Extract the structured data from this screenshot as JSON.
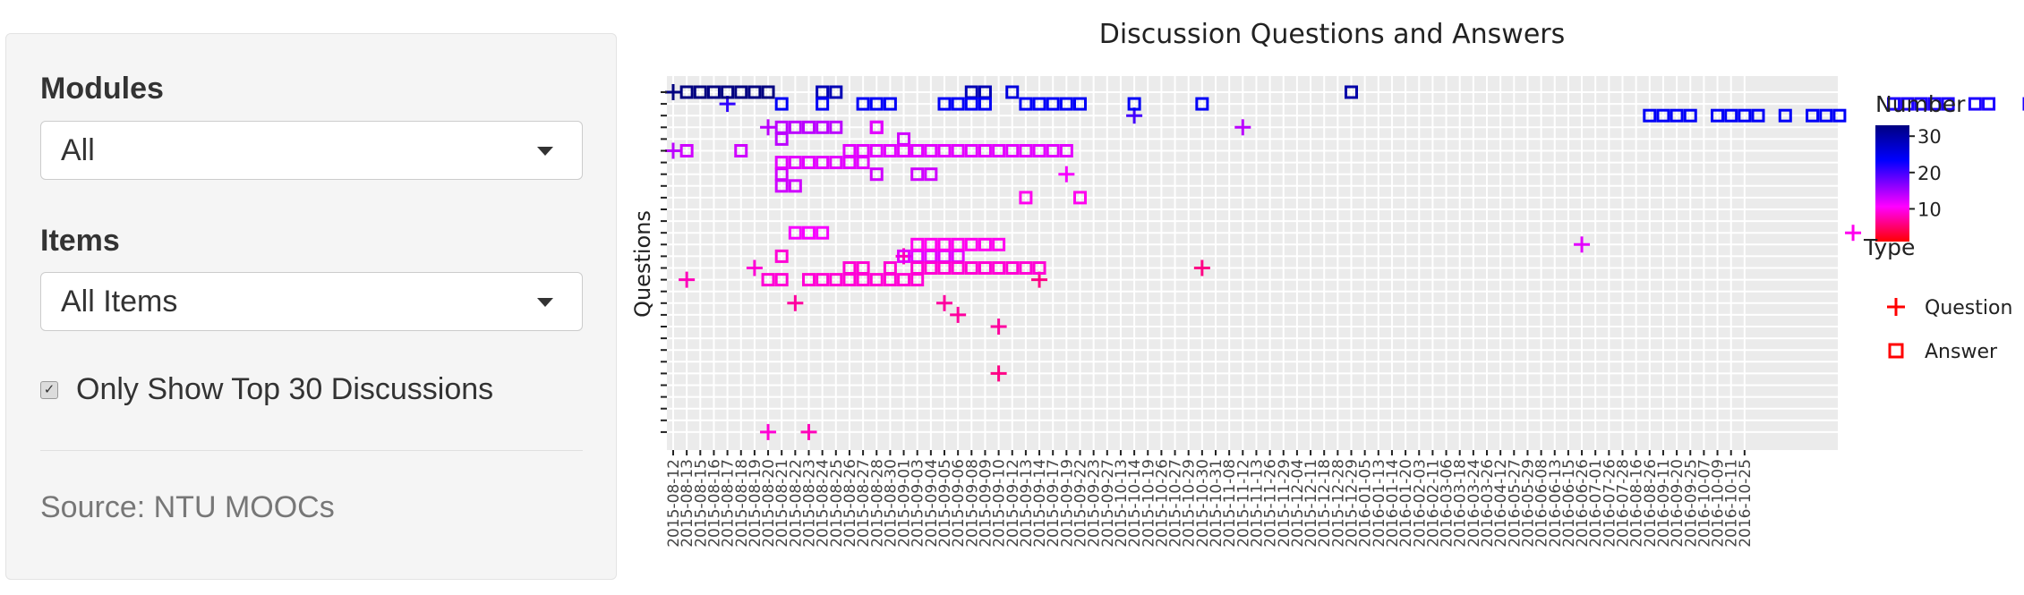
{
  "sidebar": {
    "modules_label": "Modules",
    "modules_value": "All",
    "items_label": "Items",
    "items_value": "All Items",
    "checkbox_checked": true,
    "checkbox_label": "Only Show Top 30 Discussions",
    "source_text": "Source: NTU MOOCs"
  },
  "chart_data": {
    "type": "scatter",
    "title": "Discussion Questions and Answers",
    "ylabel": "Questions",
    "xlabel": "",
    "grid": true,
    "x": [
      "2015-08-12",
      "2015-08-13",
      "2015-08-15",
      "2015-08-16",
      "2015-08-17",
      "2015-08-18",
      "2015-08-19",
      "2015-08-20",
      "2015-08-21",
      "2015-08-22",
      "2015-08-23",
      "2015-08-24",
      "2015-08-25",
      "2015-08-26",
      "2015-08-27",
      "2015-08-28",
      "2015-08-30",
      "2015-09-01",
      "2015-09-03",
      "2015-09-04",
      "2015-09-05",
      "2015-09-06",
      "2015-09-08",
      "2015-09-09",
      "2015-09-10",
      "2015-09-12",
      "2015-09-13",
      "2015-09-14",
      "2015-09-17",
      "2015-09-19",
      "2015-09-22",
      "2015-09-23",
      "2015-09-27",
      "2015-10-13",
      "2015-10-14",
      "2015-10-19",
      "2015-10-26",
      "2015-10-27",
      "2015-10-29",
      "2015-10-30",
      "2015-10-31",
      "2015-11-08",
      "2015-11-12",
      "2015-11-13",
      "2015-11-26",
      "2015-11-29",
      "2015-12-04",
      "2015-12-11",
      "2015-12-18",
      "2015-12-28",
      "2015-12-29",
      "2016-01-05",
      "2016-01-13",
      "2016-01-14",
      "2016-01-20",
      "2016-02-03",
      "2016-02-11",
      "2016-03-06",
      "2016-03-18",
      "2016-03-24",
      "2016-03-26",
      "2016-04-12",
      "2016-05-27",
      "2016-05-29",
      "2016-06-08",
      "2016-06-13",
      "2016-06-15",
      "2016-06-26",
      "2016-07-01",
      "2016-07-26",
      "2016-07-28",
      "2016-08-16",
      "2016-08-26",
      "2016-09-11",
      "2016-09-20",
      "2016-09-25",
      "2016-10-07",
      "2016-10-09",
      "2016-10-11",
      "2016-10-25"
    ],
    "n_questions": 30,
    "legend": {
      "title": "Type",
      "placement": "right",
      "entries": [
        {
          "name": "Question",
          "marker": "cross"
        },
        {
          "name": "Answer",
          "marker": "square"
        }
      ]
    },
    "colorbar": {
      "title": "Number",
      "ticks": [
        10,
        20,
        30
      ],
      "range": [
        1,
        33
      ],
      "colors": [
        "#ff0000",
        "#ff00ff",
        "#0000ff",
        "#000080"
      ]
    },
    "series": [
      {
        "name": "Question",
        "points": [
          [
            0,
            1,
            33
          ],
          [
            4,
            2,
            21
          ],
          [
            0,
            6,
            14
          ],
          [
            1,
            17,
            8
          ],
          [
            6,
            16,
            9
          ],
          [
            7,
            4,
            14
          ],
          [
            7,
            30,
            9
          ],
          [
            10,
            30,
            8
          ],
          [
            9,
            19,
            7
          ],
          [
            17,
            15,
            8
          ],
          [
            21,
            20,
            7
          ],
          [
            20,
            19,
            7
          ],
          [
            24,
            25,
            6
          ],
          [
            27,
            17,
            6
          ],
          [
            24,
            21,
            7
          ],
          [
            29,
            8,
            11
          ],
          [
            39,
            16,
            6
          ],
          [
            34,
            3,
            20
          ],
          [
            42,
            4,
            14
          ],
          [
            67,
            14,
            12
          ],
          [
            87,
            13,
            10
          ]
        ]
      },
      {
        "name": "Answer",
        "points": [
          [
            1,
            1,
            33
          ],
          [
            2,
            1,
            33
          ],
          [
            3,
            1,
            33
          ],
          [
            4,
            1,
            33
          ],
          [
            5,
            1,
            33
          ],
          [
            6,
            1,
            33
          ],
          [
            7,
            1,
            33
          ],
          [
            8,
            2,
            24
          ],
          [
            11,
            1,
            29
          ],
          [
            12,
            1,
            29
          ],
          [
            11,
            2,
            24
          ],
          [
            14,
            2,
            24
          ],
          [
            15,
            2,
            24
          ],
          [
            16,
            2,
            24
          ],
          [
            20,
            2,
            24
          ],
          [
            21,
            2,
            24
          ],
          [
            22,
            1,
            29
          ],
          [
            23,
            1,
            29
          ],
          [
            22,
            2,
            24
          ],
          [
            23,
            2,
            24
          ],
          [
            25,
            1,
            26
          ],
          [
            26,
            2,
            24
          ],
          [
            27,
            2,
            24
          ],
          [
            28,
            2,
            24
          ],
          [
            29,
            2,
            24
          ],
          [
            30,
            2,
            24
          ],
          [
            34,
            2,
            24
          ],
          [
            39,
            2,
            24
          ],
          [
            50,
            1,
            30
          ],
          [
            72,
            3,
            24
          ],
          [
            73,
            3,
            24
          ],
          [
            74,
            3,
            24
          ],
          [
            75,
            3,
            24
          ],
          [
            77,
            3,
            24
          ],
          [
            78,
            3,
            24
          ],
          [
            79,
            3,
            24
          ],
          [
            80,
            3,
            24
          ],
          [
            82,
            3,
            24
          ],
          [
            84,
            3,
            24
          ],
          [
            85,
            3,
            24
          ],
          [
            86,
            3,
            24
          ],
          [
            90,
            2,
            22
          ],
          [
            91,
            2,
            22
          ],
          [
            92,
            2,
            22
          ],
          [
            93,
            2,
            22
          ],
          [
            94,
            2,
            22
          ],
          [
            96,
            2,
            22
          ],
          [
            97,
            2,
            22
          ],
          [
            100,
            2,
            22
          ],
          [
            1,
            6,
            13
          ],
          [
            5,
            6,
            13
          ],
          [
            8,
            4,
            14
          ],
          [
            9,
            4,
            14
          ],
          [
            10,
            4,
            14
          ],
          [
            11,
            4,
            14
          ],
          [
            12,
            4,
            14
          ],
          [
            8,
            5,
            14
          ],
          [
            15,
            4,
            13
          ],
          [
            17,
            5,
            13
          ],
          [
            18,
            6,
            13
          ],
          [
            20,
            6,
            13
          ],
          [
            18,
            8,
            13
          ],
          [
            19,
            8,
            13
          ],
          [
            15,
            8,
            13
          ],
          [
            8,
            9,
            13
          ],
          [
            9,
            9,
            13
          ],
          [
            8,
            8,
            13
          ],
          [
            15,
            4,
            12
          ],
          [
            9,
            13,
            11
          ],
          [
            10,
            13,
            11
          ],
          [
            11,
            13,
            11
          ],
          [
            17,
            15,
            12
          ],
          [
            18,
            15,
            12
          ],
          [
            19,
            15,
            12
          ],
          [
            20,
            15,
            12
          ],
          [
            21,
            15,
            12
          ],
          [
            18,
            14,
            10
          ],
          [
            19,
            14,
            10
          ],
          [
            20,
            14,
            10
          ],
          [
            21,
            14,
            10
          ],
          [
            22,
            14,
            10
          ],
          [
            23,
            14,
            10
          ],
          [
            24,
            14,
            10
          ],
          [
            26,
            10,
            10
          ],
          [
            30,
            10,
            10
          ],
          [
            8,
            15,
            9
          ],
          [
            7,
            17,
            9
          ],
          [
            8,
            17,
            9
          ],
          [
            10,
            17,
            9
          ],
          [
            11,
            17,
            9
          ],
          [
            12,
            17,
            9
          ],
          [
            13,
            17,
            9
          ],
          [
            14,
            17,
            9
          ],
          [
            15,
            17,
            9
          ],
          [
            16,
            17,
            9
          ],
          [
            17,
            17,
            9
          ],
          [
            18,
            17,
            9
          ],
          [
            13,
            16,
            9
          ],
          [
            14,
            16,
            9
          ],
          [
            16,
            16,
            9
          ],
          [
            18,
            16,
            9
          ],
          [
            19,
            16,
            9
          ],
          [
            20,
            16,
            9
          ],
          [
            21,
            16,
            9
          ],
          [
            22,
            16,
            9
          ],
          [
            23,
            16,
            9
          ],
          [
            24,
            16,
            9
          ],
          [
            25,
            16,
            9
          ],
          [
            26,
            16,
            9
          ],
          [
            27,
            16,
            9
          ],
          [
            8,
            7,
            12
          ],
          [
            9,
            7,
            12
          ],
          [
            10,
            7,
            12
          ],
          [
            11,
            7,
            12
          ],
          [
            12,
            7,
            12
          ],
          [
            13,
            7,
            12
          ],
          [
            14,
            7,
            12
          ],
          [
            13,
            6,
            12
          ],
          [
            14,
            6,
            12
          ],
          [
            15,
            6,
            12
          ],
          [
            16,
            6,
            12
          ],
          [
            17,
            6,
            12
          ],
          [
            18,
            6,
            12
          ],
          [
            19,
            6,
            12
          ],
          [
            20,
            6,
            12
          ],
          [
            21,
            6,
            12
          ],
          [
            22,
            6,
            12
          ],
          [
            23,
            6,
            12
          ],
          [
            24,
            6,
            12
          ],
          [
            25,
            6,
            12
          ],
          [
            26,
            6,
            12
          ],
          [
            27,
            6,
            12
          ],
          [
            28,
            6,
            12
          ],
          [
            29,
            6,
            12
          ]
        ]
      }
    ]
  }
}
